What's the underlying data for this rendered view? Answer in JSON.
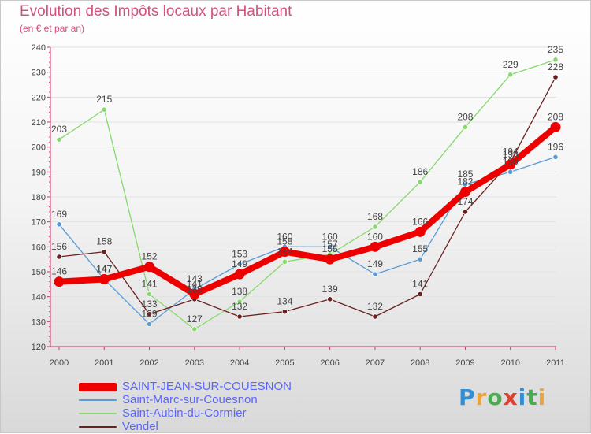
{
  "header": {
    "title": "Evolution des Impôts locaux par Habitant",
    "subtitle": "(en € et par an)"
  },
  "chart_data": {
    "type": "line",
    "title": "Evolution des Impôts locaux par Habitant",
    "subtitle": "(en € et par an)",
    "xlabel": "",
    "ylabel": "",
    "categories": [
      "2000",
      "2001",
      "2002",
      "2003",
      "2004",
      "2005",
      "2006",
      "2007",
      "2008",
      "2009",
      "2010",
      "2011"
    ],
    "ylim": [
      120,
      240
    ],
    "yticks": [
      120,
      130,
      140,
      150,
      160,
      170,
      180,
      190,
      200,
      210,
      220,
      230,
      240
    ],
    "grid": "horizontal",
    "legend_position": "bottom-left",
    "series": [
      {
        "name": "SAINT-JEAN-SUR-COUESNON",
        "color": "#ee0000",
        "values": [
          146,
          147,
          152,
          141,
          149,
          158,
          155,
          160,
          166,
          182,
          193,
          208
        ]
      },
      {
        "name": "Saint-Marc-sur-Couesnon",
        "color": "#5b9bd5",
        "values": [
          169,
          147,
          129,
          143,
          153,
          160,
          160,
          149,
          155,
          185,
          190,
          196
        ]
      },
      {
        "name": "Saint-Aubin-du-Cormier",
        "color": "#86d96b",
        "values": [
          203,
          215,
          141,
          127,
          138,
          154,
          157,
          168,
          186,
          208,
          229,
          235
        ]
      },
      {
        "name": "Vendel",
        "color": "#6b1f1f",
        "values": [
          156,
          158,
          133,
          139,
          132,
          134,
          139,
          132,
          141,
          174,
          194,
          228
        ]
      }
    ]
  },
  "logo": {
    "p": "P",
    "r": "r",
    "o": "o",
    "x": "x",
    "i1": "i",
    "t": "t",
    "i2": "i"
  }
}
